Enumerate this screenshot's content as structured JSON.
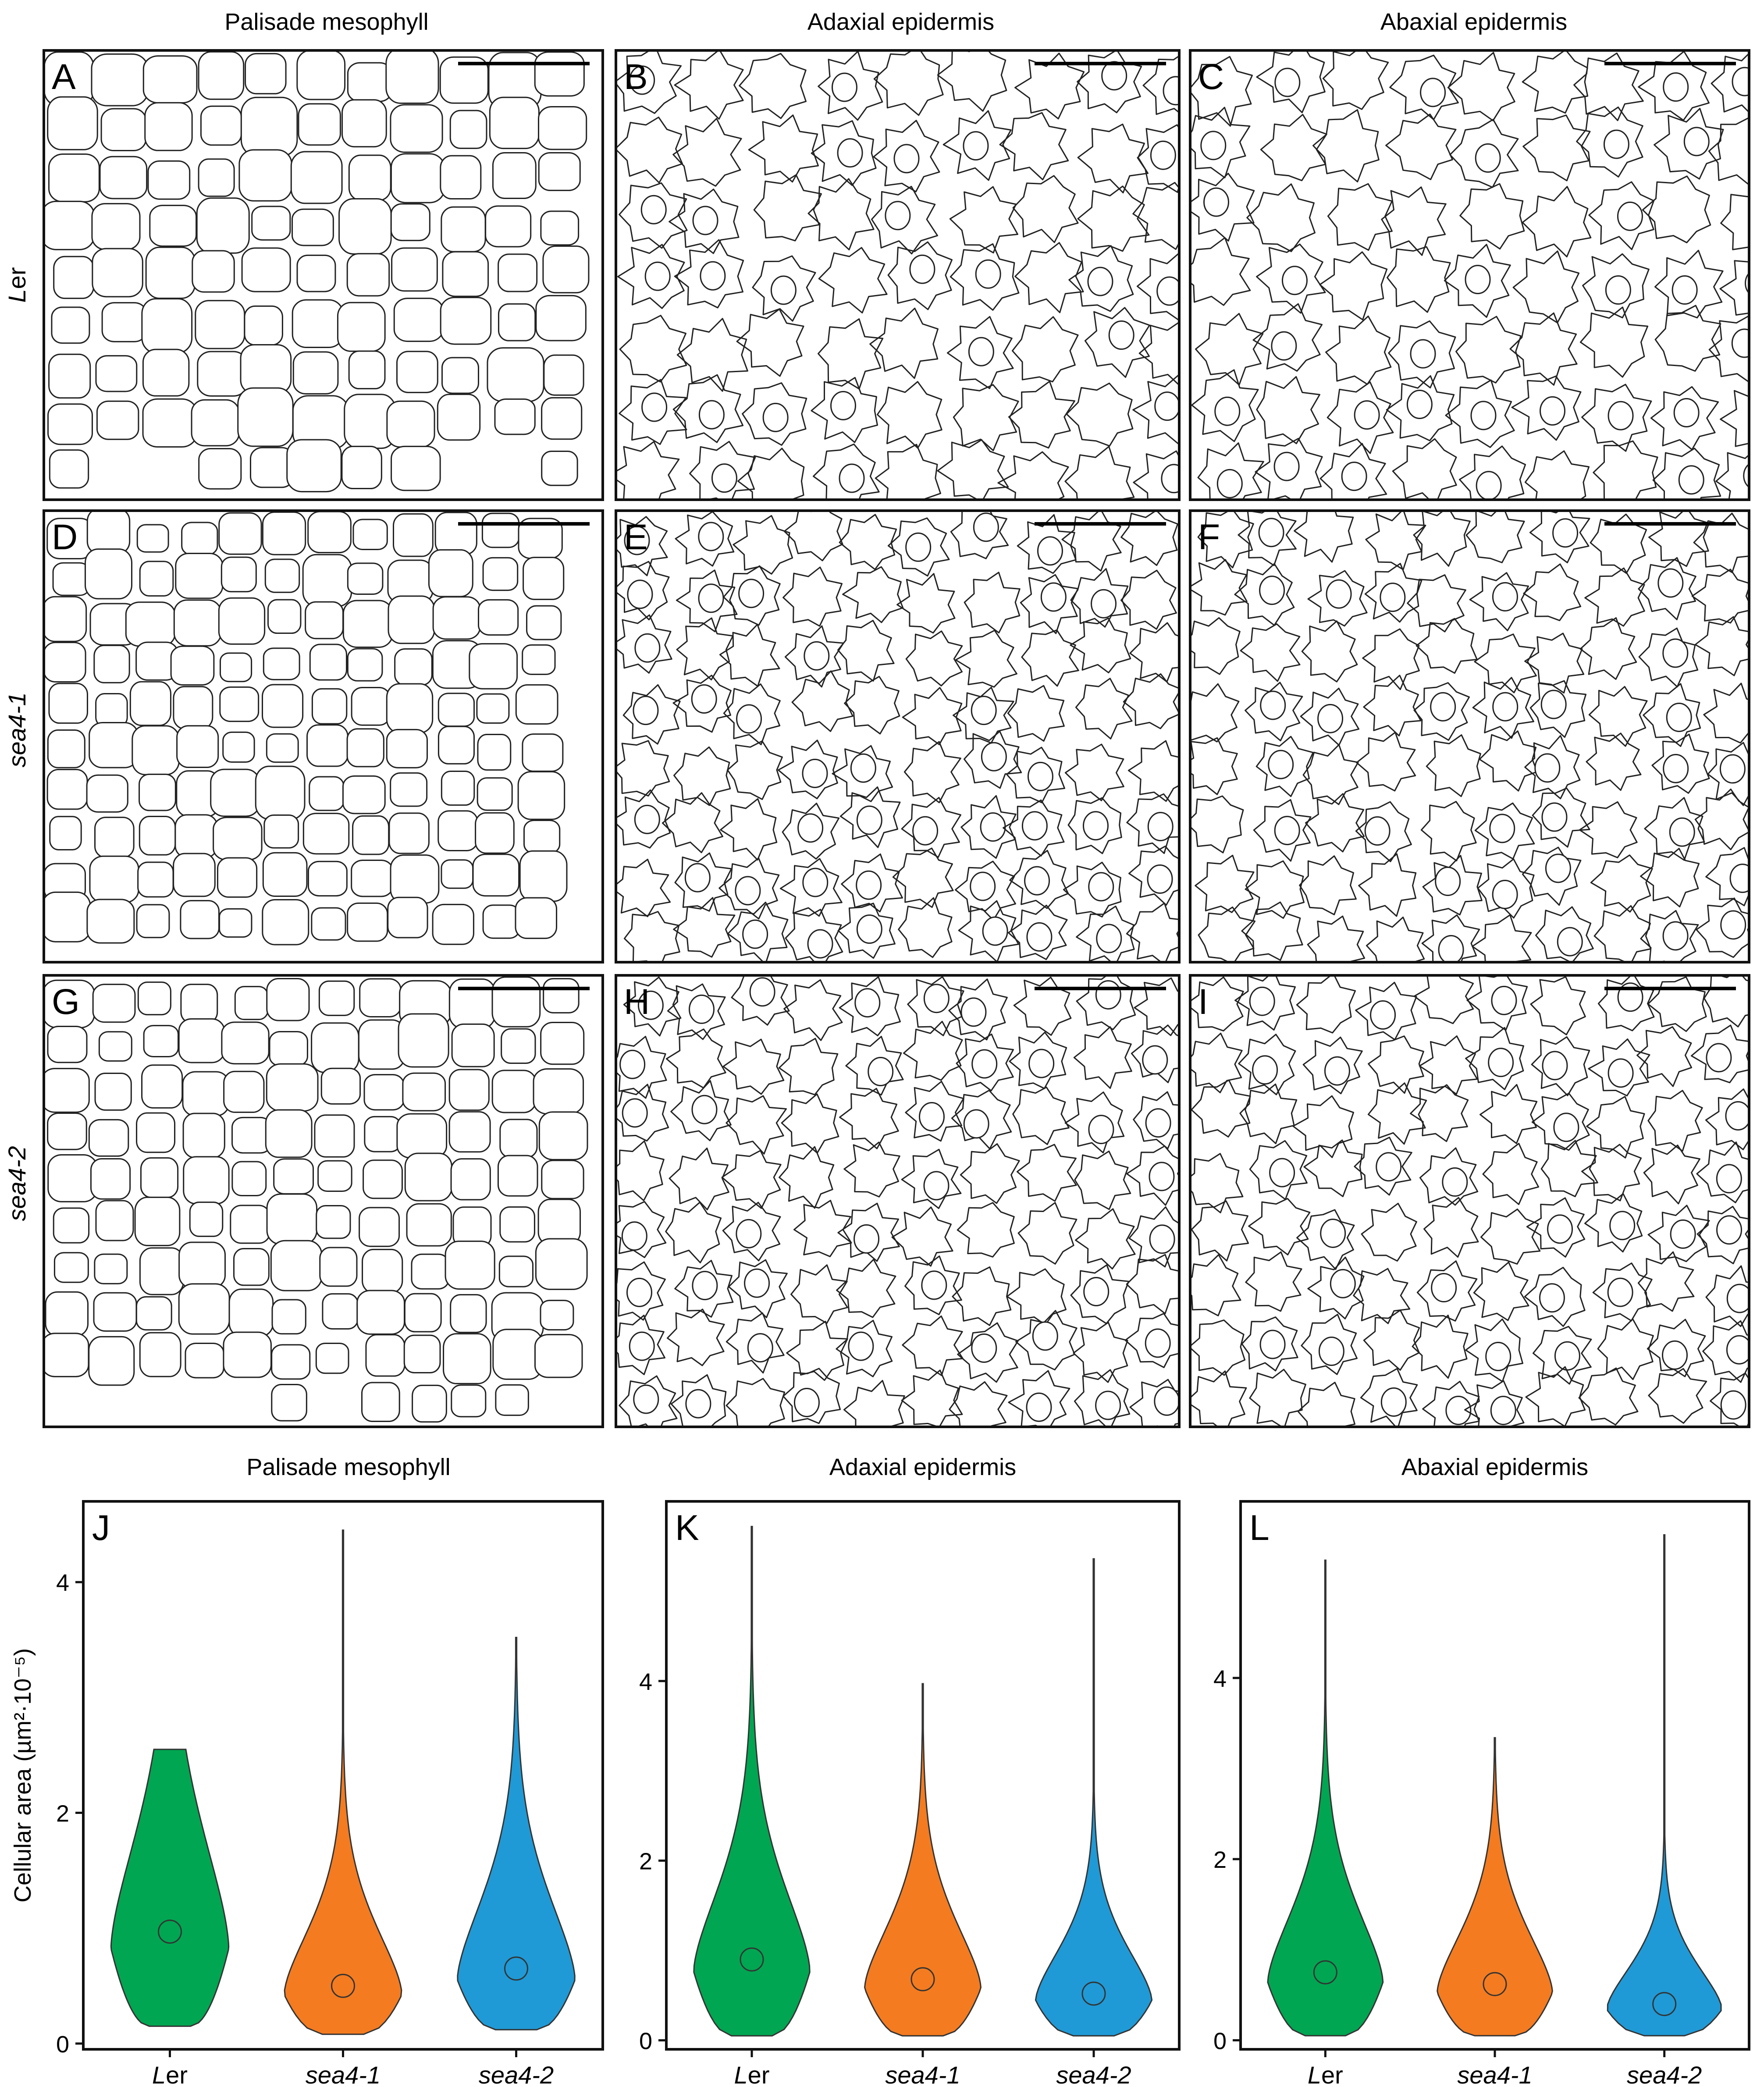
{
  "column_titles": [
    "Palisade mesophyll",
    "Adaxial epidermis",
    "Abaxial epidermis"
  ],
  "row_labels": [
    {
      "text": "Ler",
      "italic_part": "L",
      "rest": "er"
    },
    {
      "text": "sea4-1"
    },
    {
      "text": "sea4-2"
    }
  ],
  "panel_letters": [
    "A",
    "B",
    "C",
    "D",
    "E",
    "F",
    "G",
    "H",
    "I"
  ],
  "chart_data": [
    {
      "type": "violin",
      "panel": "J",
      "title": "Palisade mesophyll",
      "ylabel": "Cellular area (µm²·10⁻⁵)",
      "ylim": [
        -0.05,
        4.7
      ],
      "yticks": [
        0,
        2,
        4
      ],
      "categories": [
        "Ler",
        "sea4-1",
        "sea4-2"
      ],
      "colors": [
        "#00a651",
        "#f47b20",
        "#1f9ad6"
      ],
      "series": [
        {
          "min": 0.15,
          "max": 2.55,
          "median": 0.97
        },
        {
          "min": 0.08,
          "max": 4.45,
          "median": 0.5
        },
        {
          "min": 0.12,
          "max": 3.52,
          "median": 0.65
        }
      ]
    },
    {
      "type": "violin",
      "panel": "K",
      "title": "Adaxial epidermis",
      "ylabel": "",
      "ylim": [
        -0.1,
        6.0
      ],
      "yticks": [
        0,
        2,
        4
      ],
      "categories": [
        "Ler",
        "sea4-1",
        "sea4-2"
      ],
      "colors": [
        "#00a651",
        "#f47b20",
        "#1f9ad6"
      ],
      "series": [
        {
          "min": 0.05,
          "max": 5.72,
          "median": 0.9
        },
        {
          "min": 0.05,
          "max": 3.97,
          "median": 0.68
        },
        {
          "min": 0.05,
          "max": 5.36,
          "median": 0.52
        }
      ]
    },
    {
      "type": "violin",
      "panel": "L",
      "title": "Abaxial epidermis",
      "ylabel": "",
      "ylim": [
        -0.1,
        5.95
      ],
      "yticks": [
        0,
        2,
        4
      ],
      "categories": [
        "Ler",
        "sea4-1",
        "sea4-2"
      ],
      "colors": [
        "#00a651",
        "#f47b20",
        "#1f9ad6"
      ],
      "series": [
        {
          "min": 0.05,
          "max": 5.3,
          "median": 0.75
        },
        {
          "min": 0.05,
          "max": 3.34,
          "median": 0.62
        },
        {
          "min": 0.05,
          "max": 5.58,
          "median": 0.4
        }
      ]
    }
  ]
}
